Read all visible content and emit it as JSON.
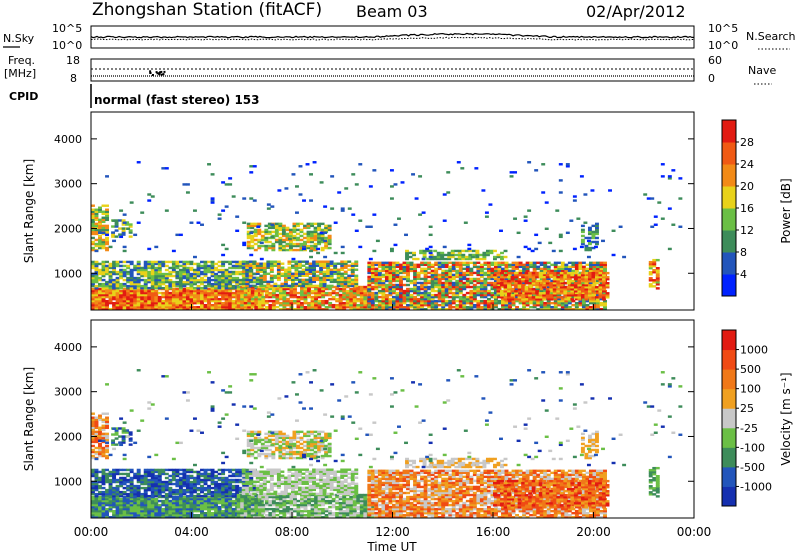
{
  "header": {
    "station": "Zhongshan Station (fitACF)",
    "beam": "Beam 03",
    "date": "02/Apr/2012"
  },
  "top_panels": {
    "nsky_label": "N.Sky",
    "nsearch_label": "N.Search",
    "freq_label": "Freq.",
    "freq_unit": "[MHz]",
    "nave_label": "Nave",
    "cpid_label": "CPID",
    "cpid_value": "normal (fast stereo) 153",
    "noise_ticks_left": [
      "10^5",
      "10^0"
    ],
    "noise_ticks_right": [
      "10^5",
      "10^0"
    ],
    "freq_ticks": [
      "18",
      "8"
    ],
    "nave_ticks": [
      "60",
      "0"
    ]
  },
  "chart_data": [
    {
      "type": "heatmap",
      "name": "power",
      "ylabel": "Slant Range [km]",
      "ylim": [
        180,
        4600
      ],
      "yticks": [
        1000,
        2000,
        3000,
        4000
      ],
      "xlim": [
        0,
        24
      ],
      "xticks": [
        "00:00",
        "04:00",
        "08:00",
        "12:00",
        "16:00",
        "20:00",
        "00:00"
      ],
      "colorbar": {
        "label": "Power [dB]",
        "ticks": [
          "4",
          "8",
          "12",
          "16",
          "20",
          "24",
          "28"
        ],
        "colors": [
          "#0022ff",
          "#2255bb",
          "#3d8c5a",
          "#6bbf45",
          "#e8d21a",
          "#f28a16",
          "#f05a14",
          "#e21b12"
        ]
      }
    },
    {
      "type": "heatmap",
      "name": "velocity",
      "ylabel": "Slant Range [km]",
      "ylim": [
        180,
        4600
      ],
      "yticks": [
        1000,
        2000,
        3000,
        4000
      ],
      "xlim": [
        0,
        24
      ],
      "xticks": [
        "00:00",
        "04:00",
        "08:00",
        "12:00",
        "16:00",
        "20:00",
        "00:00"
      ],
      "xlabel": "Time UT",
      "colorbar": {
        "label": "Velocity [m s⁻¹]",
        "ticks": [
          "1000",
          "500",
          "100",
          "25",
          "-25",
          "-100",
          "-500",
          "-1000"
        ],
        "colors": [
          "#1530b0",
          "#2255bb",
          "#3d8c5a",
          "#6bbf45",
          "#c8c8c8",
          "#f0a020",
          "#f07818",
          "#f04a14",
          "#e21b12"
        ]
      }
    }
  ]
}
